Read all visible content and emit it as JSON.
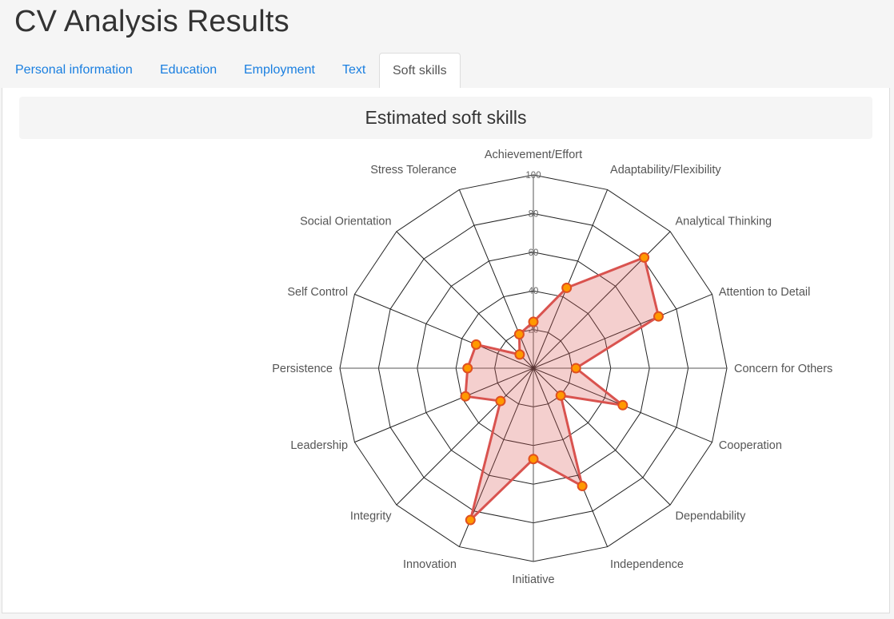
{
  "page": {
    "title": "CV Analysis Results"
  },
  "tabs": [
    {
      "label": "Personal information",
      "active": false
    },
    {
      "label": "Education",
      "active": false
    },
    {
      "label": "Employment",
      "active": false
    },
    {
      "label": "Text",
      "active": false
    },
    {
      "label": "Soft skills",
      "active": true
    }
  ],
  "panel": {
    "heading": "Estimated soft skills"
  },
  "colors": {
    "link": "#1a7fe0",
    "series_line": "#d9534f",
    "series_fill": "rgba(217,83,79,0.28)",
    "point_fill": "#ff9900",
    "point_stroke": "#e05020"
  },
  "chart_data": {
    "type": "radar",
    "title": "",
    "rmax": 100,
    "ticks": [
      20,
      40,
      60,
      80,
      100
    ],
    "grid": true,
    "categories": [
      "Achievement/Effort",
      "Adaptability/Flexibility",
      "Analytical Thinking",
      "Attention to Detail",
      "Concern for Others",
      "Cooperation",
      "Dependability",
      "Independence",
      "Initiative",
      "Innovation",
      "Integrity",
      "Leadership",
      "Persistence",
      "Self Control",
      "Social Orientation",
      "Stress Tolerance"
    ],
    "series": [
      {
        "values": [
          24,
          45,
          81,
          70,
          22,
          50,
          20,
          66,
          47,
          85,
          24,
          38,
          34,
          32,
          10,
          19
        ]
      }
    ]
  }
}
